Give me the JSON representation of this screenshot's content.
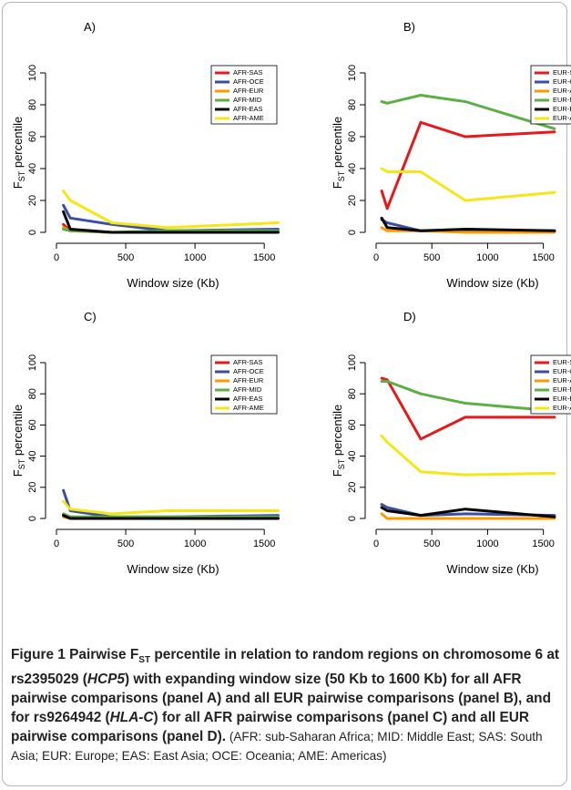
{
  "chart_data": [
    {
      "type": "line",
      "panel_label": "A)",
      "xlabel": "Window size (Kb)",
      "ylabel_main": "F",
      "ylabel_sub": "ST",
      "ylabel_rest": "percentile",
      "xlim": [
        0,
        1650
      ],
      "ylim": [
        0,
        100
      ],
      "xticks": [
        0,
        500,
        1000,
        1500
      ],
      "yticks": [
        0,
        20,
        40,
        60,
        80,
        100
      ],
      "legend_position": "top-right",
      "x": [
        50,
        100,
        400,
        800,
        1600
      ],
      "series": [
        {
          "name": "AFR-SAS",
          "color": "#e41a1c",
          "values": [
            5,
            1,
            0,
            0,
            0
          ]
        },
        {
          "name": "AFR-OCE",
          "color": "#3a4fa0",
          "values": [
            17,
            9,
            5,
            1,
            2
          ]
        },
        {
          "name": "AFR-EUR",
          "color": "#ff9900",
          "values": [
            3,
            1,
            0,
            0,
            0
          ]
        },
        {
          "name": "AFR-MID",
          "color": "#5bb043",
          "values": [
            2,
            1,
            0,
            1,
            1
          ]
        },
        {
          "name": "AFR-EAS",
          "color": "#000000",
          "values": [
            13,
            2,
            0,
            0,
            0
          ]
        },
        {
          "name": "AFR-AME",
          "color": "#f5e616",
          "values": [
            26,
            20,
            6,
            3,
            6
          ]
        }
      ]
    },
    {
      "type": "line",
      "panel_label": "B)",
      "xlabel": "Window size (Kb)",
      "ylabel_main": "F",
      "ylabel_sub": "ST",
      "ylabel_rest": "percentile",
      "xlim": [
        0,
        1650
      ],
      "ylim": [
        0,
        100
      ],
      "xticks": [
        0,
        500,
        1000,
        1500
      ],
      "yticks": [
        0,
        20,
        40,
        60,
        80,
        100
      ],
      "legend_position": "top-right",
      "x": [
        50,
        100,
        400,
        800,
        1600
      ],
      "series": [
        {
          "name": "EUR-SAS",
          "color": "#e41a1c",
          "values": [
            26,
            15,
            69,
            60,
            63
          ]
        },
        {
          "name": "EUR-OCE",
          "color": "#3a4fa0",
          "values": [
            8,
            6,
            1,
            1,
            1
          ]
        },
        {
          "name": "EUR-AFR",
          "color": "#ff9900",
          "values": [
            3,
            1,
            1,
            0,
            0
          ]
        },
        {
          "name": "EUR-MID",
          "color": "#5bb043",
          "values": [
            82,
            81,
            86,
            82,
            65
          ]
        },
        {
          "name": "EUR-EAS",
          "color": "#000000",
          "values": [
            9,
            3,
            1,
            2,
            1
          ]
        },
        {
          "name": "EUR-AME",
          "color": "#f5e616",
          "values": [
            40,
            38,
            38,
            20,
            25
          ]
        }
      ]
    },
    {
      "type": "line",
      "panel_label": "C)",
      "xlabel": "Window size (Kb)",
      "ylabel_main": "F",
      "ylabel_sub": "ST",
      "ylabel_rest": "percentile",
      "xlim": [
        0,
        1650
      ],
      "ylim": [
        0,
        100
      ],
      "xticks": [
        0,
        500,
        1000,
        1500
      ],
      "yticks": [
        0,
        20,
        40,
        60,
        80,
        100
      ],
      "legend_position": "top-right",
      "x": [
        50,
        100,
        400,
        800,
        1600
      ],
      "series": [
        {
          "name": "AFR-SAS",
          "color": "#e41a1c",
          "values": [
            2,
            1,
            0,
            0,
            0
          ]
        },
        {
          "name": "AFR-OCE",
          "color": "#3a4fa0",
          "values": [
            18,
            5,
            1,
            1,
            2
          ]
        },
        {
          "name": "AFR-EUR",
          "color": "#ff9900",
          "values": [
            1,
            0,
            0,
            0,
            0
          ]
        },
        {
          "name": "AFR-MID",
          "color": "#5bb043",
          "values": [
            3,
            1,
            1,
            1,
            1
          ]
        },
        {
          "name": "AFR-EAS",
          "color": "#000000",
          "values": [
            2,
            0,
            0,
            0,
            0
          ]
        },
        {
          "name": "AFR-AME",
          "color": "#f5e616",
          "values": [
            11,
            6,
            3,
            5,
            5
          ]
        }
      ]
    },
    {
      "type": "line",
      "panel_label": "D)",
      "xlabel": "Window size (Kb)",
      "ylabel_main": "F",
      "ylabel_sub": "ST",
      "ylabel_rest": "percentile",
      "xlim": [
        0,
        1650
      ],
      "ylim": [
        0,
        100
      ],
      "xticks": [
        0,
        500,
        1000,
        1500
      ],
      "yticks": [
        0,
        20,
        40,
        60,
        80,
        100
      ],
      "legend_position": "top-right",
      "x": [
        50,
        100,
        400,
        800,
        1600
      ],
      "series": [
        {
          "name": "EUR-SAS",
          "color": "#e41a1c",
          "values": [
            90,
            89,
            51,
            65,
            65
          ]
        },
        {
          "name": "EUR-OCE",
          "color": "#3a4fa0",
          "values": [
            9,
            7,
            2,
            3,
            2
          ]
        },
        {
          "name": "EUR-AFR",
          "color": "#ff9900",
          "values": [
            3,
            0,
            0,
            0,
            0
          ]
        },
        {
          "name": "EUR-MID",
          "color": "#5bb043",
          "values": [
            88,
            88,
            80,
            74,
            69
          ]
        },
        {
          "name": "EUR-EAS",
          "color": "#000000",
          "values": [
            7,
            5,
            2,
            6,
            1
          ]
        },
        {
          "name": "EUR-AME",
          "color": "#f5e616",
          "values": [
            53,
            49,
            30,
            28,
            29
          ]
        }
      ]
    }
  ],
  "caption": {
    "figure_label": "Figure 1",
    "title_part1": "Pairwise F",
    "title_sub": "ST",
    "title_part2": " percentile in relation to random regions on chromosome 6 at rs2395029 (",
    "gene1": "HCP5",
    "title_part3": ") with expanding window size (50 Kb to 1600 Kb) for all AFR pairwise comparisons (panel A) and all EUR pairwise comparisons (panel B), and for rs9264942 (",
    "gene2": "HLA-C",
    "title_part4": ") for all AFR pairwise comparisons (panel C) and all EUR pairwise comparisons (panel D).",
    "abbreviations": " (AFR: sub-Saharan Africa; MID: Middle East; SAS: South Asia; EUR: Europe; EAS: East Asia; OCE: Oceania; AME: Americas)"
  }
}
